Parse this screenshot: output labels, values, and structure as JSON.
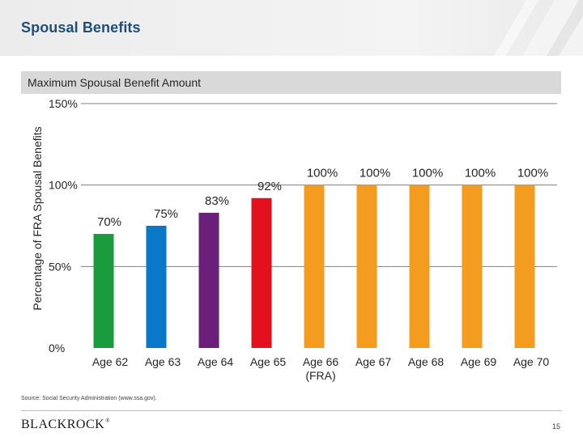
{
  "header": {
    "title": "Spousal Benefits"
  },
  "chart_data": {
    "type": "bar",
    "title": "Maximum Spousal Benefit Amount",
    "ylabel": "Percentage of FRA Spousal Benefits",
    "xlabel": "",
    "ylim": [
      0,
      150
    ],
    "yticks": [
      0,
      50,
      100,
      150
    ],
    "ytick_labels": [
      "0%",
      "50%",
      "100%",
      "150%"
    ],
    "grid": true,
    "categories": [
      "Age 62",
      "Age 63",
      "Age 64",
      "Age 65",
      "Age 66",
      "Age 67",
      "Age 68",
      "Age 69",
      "Age 70"
    ],
    "category_sublabels": [
      "",
      "",
      "",
      "",
      "(FRA)",
      "",
      "",
      "",
      ""
    ],
    "values": [
      70,
      75,
      83,
      92,
      100,
      100,
      100,
      100,
      100
    ],
    "data_labels": [
      "70%",
      "75%",
      "83%",
      "92%",
      "100%",
      "100%",
      "100%",
      "100%",
      "100%"
    ],
    "colors": [
      "#1a9c3e",
      "#0a78c8",
      "#6a1f7a",
      "#e3101e",
      "#f39c1f",
      "#f39c1f",
      "#f39c1f",
      "#f39c1f",
      "#f39c1f"
    ]
  },
  "footer": {
    "source": "Source: Social Security Administration (www.ssa.gov).",
    "logo": "BLACKROCK",
    "logo_mark": "®",
    "page_number": "15"
  }
}
